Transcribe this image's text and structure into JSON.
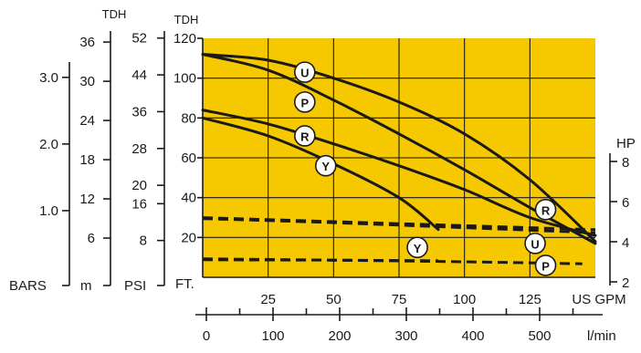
{
  "chart_data": {
    "type": "line",
    "plot_background": "#f6c800",
    "x_axis": {
      "unit_label": "US GPM",
      "ticks": [
        25,
        50,
        75,
        100,
        125
      ],
      "range": [
        0,
        150
      ]
    },
    "x_axis_secondary": {
      "unit_label": "l/min",
      "ticks": [
        0,
        100,
        200,
        300,
        400,
        500
      ],
      "range": [
        0,
        570
      ]
    },
    "y_axis_ft": {
      "unit_label": "FT.",
      "header": "TDH",
      "ticks": [
        20,
        40,
        60,
        80,
        100,
        120
      ],
      "range": [
        0,
        120
      ]
    },
    "y_axis_psi": {
      "unit_label": "PSI",
      "ticks": [
        8,
        16,
        20,
        28,
        36,
        44,
        52
      ]
    },
    "y_axis_m": {
      "unit_label": "m",
      "header": "TDH",
      "ticks": [
        6,
        12,
        18,
        24,
        30,
        36
      ]
    },
    "y_axis_bars": {
      "unit_label": "BARS",
      "ticks": [
        "1.0",
        "2.0",
        "3.0"
      ]
    },
    "y_axis_hp": {
      "unit_label": "HP",
      "ticks": [
        2,
        4,
        6,
        8
      ]
    },
    "head_curves": [
      {
        "name": "U",
        "x": [
          0,
          25,
          50,
          75,
          100,
          125,
          150
        ],
        "y": [
          112,
          109,
          100,
          88,
          72,
          49,
          18
        ]
      },
      {
        "name": "P",
        "x": [
          0,
          25,
          50,
          75,
          100,
          125,
          150
        ],
        "y": [
          112,
          104,
          89,
          72,
          54,
          35,
          17
        ]
      },
      {
        "name": "R",
        "x": [
          0,
          25,
          50,
          75,
          100,
          125,
          150
        ],
        "y": [
          84,
          77,
          67,
          56,
          44,
          30,
          21
        ]
      },
      {
        "name": "Y",
        "x": [
          0,
          25,
          50,
          75,
          90
        ],
        "y": [
          80,
          71,
          57,
          40,
          24
        ]
      }
    ],
    "hp_curves": [
      {
        "name": "U",
        "x": [
          0,
          50,
          100,
          150
        ],
        "y": [
          5.2,
          5.0,
          4.8,
          4.6
        ]
      },
      {
        "name": "R",
        "x": [
          0,
          50,
          100,
          150
        ],
        "y": [
          5.15,
          4.95,
          4.7,
          4.45
        ]
      },
      {
        "name": "P",
        "x": [
          0,
          50,
          100,
          145
        ],
        "y": [
          3.15,
          3.08,
          3.0,
          2.9
        ]
      },
      {
        "name": "Y",
        "x": [
          0,
          50,
          90
        ],
        "y": [
          3.1,
          3.08,
          3.05
        ]
      }
    ],
    "marker_labels": [
      {
        "text": "U",
        "x": 39,
        "y": 103
      },
      {
        "text": "P",
        "x": 39,
        "y": 88
      },
      {
        "text": "R",
        "x": 39,
        "y": 71
      },
      {
        "text": "Y",
        "x": 47,
        "y": 56
      },
      {
        "text": "R",
        "x": 131,
        "y": 34
      },
      {
        "text": "Y",
        "x": 82,
        "y": 15
      },
      {
        "text": "U",
        "x": 127,
        "y": 17
      },
      {
        "text": "P",
        "x": 131,
        "y": 6
      }
    ]
  }
}
